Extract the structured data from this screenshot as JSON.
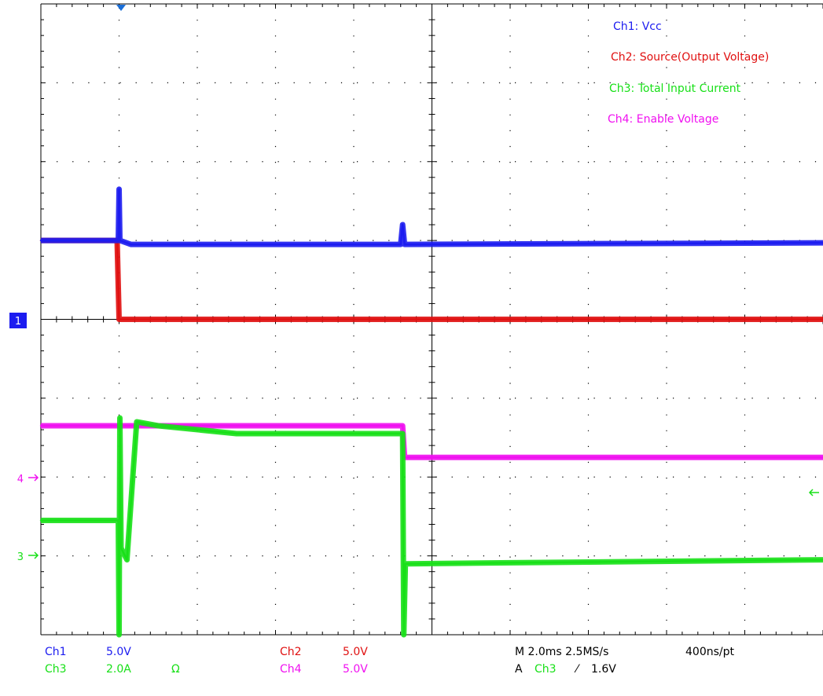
{
  "colors": {
    "ch1": "#1c1cf0",
    "ch2": "#e01010",
    "ch3": "#18e018",
    "ch4": "#f010f0",
    "grid": "#000000",
    "marker_bg": "#1c1cf0"
  },
  "legend": {
    "ch1": "Ch1:  Vcc",
    "ch2": "Ch2:  Source(Output Voltage)",
    "ch3": "Ch3:  Total Input Current",
    "ch4": "Ch4:  Enable Voltage"
  },
  "markers": {
    "ch1": "1",
    "ch4": "4",
    "ch3": "3"
  },
  "readout": {
    "ch1_label": "Ch1",
    "ch1_scale": "5.0V",
    "ch2_label": "Ch2",
    "ch2_scale": "5.0V",
    "ch3_label": "Ch3",
    "ch3_scale": "2.0A",
    "ch3_coupling": "Ω",
    "ch4_label": "Ch4",
    "ch4_scale": "5.0V",
    "timebase": "M 2.0ms 2.5MS/s",
    "record": "400ns/pt",
    "trigger_prefix": "A",
    "trigger_source": "Ch3",
    "trigger_slope": "⁄",
    "trigger_level": "1.6V"
  },
  "chart_data": {
    "type": "line",
    "x_unit": "ms",
    "x_range": [
      0,
      20
    ],
    "y_unit": "div",
    "y_range": [
      -4,
      4
    ],
    "grid": true,
    "trigger_time_ms": 2.0,
    "series": [
      {
        "name": "Vcc",
        "channel": "Ch1",
        "points": [
          [
            0,
            1.0
          ],
          [
            1.98,
            1.0
          ],
          [
            2.0,
            1.65
          ],
          [
            2.02,
            1.0
          ],
          [
            2.3,
            0.95
          ],
          [
            9.2,
            0.95
          ],
          [
            9.25,
            1.2
          ],
          [
            9.3,
            0.95
          ],
          [
            20,
            0.97
          ]
        ]
      },
      {
        "name": "Source(Output Voltage)",
        "channel": "Ch2",
        "points": [
          [
            0,
            1.0
          ],
          [
            1.95,
            1.0
          ],
          [
            1.97,
            0.6
          ],
          [
            2.0,
            0.0
          ],
          [
            20,
            0.0
          ]
        ]
      },
      {
        "name": "Total Input Current",
        "channel": "Ch3",
        "points": [
          [
            0,
            -2.55
          ],
          [
            1.98,
            -2.55
          ],
          [
            2.0,
            -4.0
          ],
          [
            2.02,
            -1.25
          ],
          [
            2.05,
            -2.9
          ],
          [
            2.2,
            -3.05
          ],
          [
            2.35,
            -2.0
          ],
          [
            2.45,
            -1.3
          ],
          [
            3.0,
            -1.35
          ],
          [
            5.0,
            -1.45
          ],
          [
            9.25,
            -1.45
          ],
          [
            9.28,
            -4.0
          ],
          [
            9.32,
            -3.1
          ],
          [
            20,
            -3.05
          ]
        ]
      },
      {
        "name": "Enable Voltage",
        "channel": "Ch4",
        "points": [
          [
            0,
            -1.35
          ],
          [
            9.25,
            -1.35
          ],
          [
            9.3,
            -1.75
          ],
          [
            20,
            -1.75
          ]
        ]
      }
    ]
  }
}
